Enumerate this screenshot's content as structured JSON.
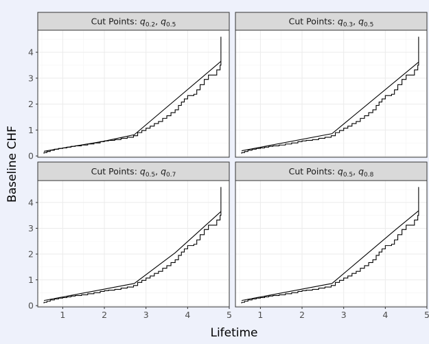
{
  "chart_data": {
    "type": "line",
    "xlabel": "Lifetime",
    "ylabel": "Baseline CHF",
    "xlim": [
      0.4,
      5.0
    ],
    "ylim": [
      -0.05,
      4.85
    ],
    "x_ticks": [
      1,
      2,
      3,
      4,
      5
    ],
    "y_ticks": [
      0,
      1,
      2,
      3,
      4
    ],
    "grid": true,
    "colors": {
      "panel_bg": "#ffffff",
      "strip_bg": "#d9d9d9",
      "grid": "#ebebeb",
      "line": "#000000",
      "figure_bg": "#eef1fb"
    },
    "step_curve": {
      "x": [
        0.55,
        0.62,
        0.7,
        0.8,
        0.9,
        1.0,
        1.1,
        1.2,
        1.3,
        1.45,
        1.6,
        1.75,
        1.9,
        2.0,
        2.1,
        2.25,
        2.4,
        2.55,
        2.7,
        2.8,
        2.9,
        3.0,
        3.1,
        3.2,
        3.3,
        3.4,
        3.5,
        3.6,
        3.7,
        3.78,
        3.85,
        3.92,
        4.0,
        4.08,
        4.15,
        4.22,
        4.3,
        4.4,
        4.5,
        4.6,
        4.7,
        4.78,
        4.8,
        4.8
      ],
      "y": [
        0.13,
        0.17,
        0.22,
        0.26,
        0.29,
        0.31,
        0.34,
        0.37,
        0.39,
        0.42,
        0.46,
        0.5,
        0.55,
        0.58,
        0.6,
        0.63,
        0.68,
        0.72,
        0.78,
        0.9,
        0.98,
        1.07,
        1.15,
        1.25,
        1.33,
        1.45,
        1.55,
        1.67,
        1.78,
        1.95,
        2.08,
        2.2,
        2.33,
        2.33,
        2.38,
        2.55,
        2.75,
        2.95,
        3.12,
        3.12,
        3.32,
        3.5,
        3.6,
        4.6
      ]
    },
    "panels": [
      {
        "strip_prefix": "Cut Points:",
        "cut1_base": "q",
        "cut1_sub": "0.2",
        "cut2_base": "q",
        "cut2_sub": "0.5",
        "fit": {
          "x": [
            0.55,
            2.0,
            2.72,
            4.8
          ],
          "y": [
            0.18,
            0.57,
            0.82,
            3.65
          ]
        }
      },
      {
        "strip_prefix": "Cut Points:",
        "cut1_base": "q",
        "cut1_sub": "0.3",
        "cut2_base": "q",
        "cut2_sub": "0.5",
        "fit": {
          "x": [
            0.55,
            2.72,
            4.8
          ],
          "y": [
            0.2,
            0.86,
            3.62
          ]
        }
      },
      {
        "strip_prefix": "Cut Points:",
        "cut1_base": "q",
        "cut1_sub": "0.5",
        "cut2_base": "q",
        "cut2_sub": "0.7",
        "fit": {
          "x": [
            0.55,
            2.72,
            3.7,
            4.8
          ],
          "y": [
            0.2,
            0.86,
            2.05,
            3.65
          ]
        }
      },
      {
        "strip_prefix": "Cut Points:",
        "cut1_base": "q",
        "cut1_sub": "0.5",
        "cut2_base": "q",
        "cut2_sub": "0.8",
        "fit": {
          "x": [
            0.55,
            2.72,
            4.25,
            4.8
          ],
          "y": [
            0.2,
            0.86,
            2.95,
            3.68
          ]
        }
      }
    ]
  }
}
